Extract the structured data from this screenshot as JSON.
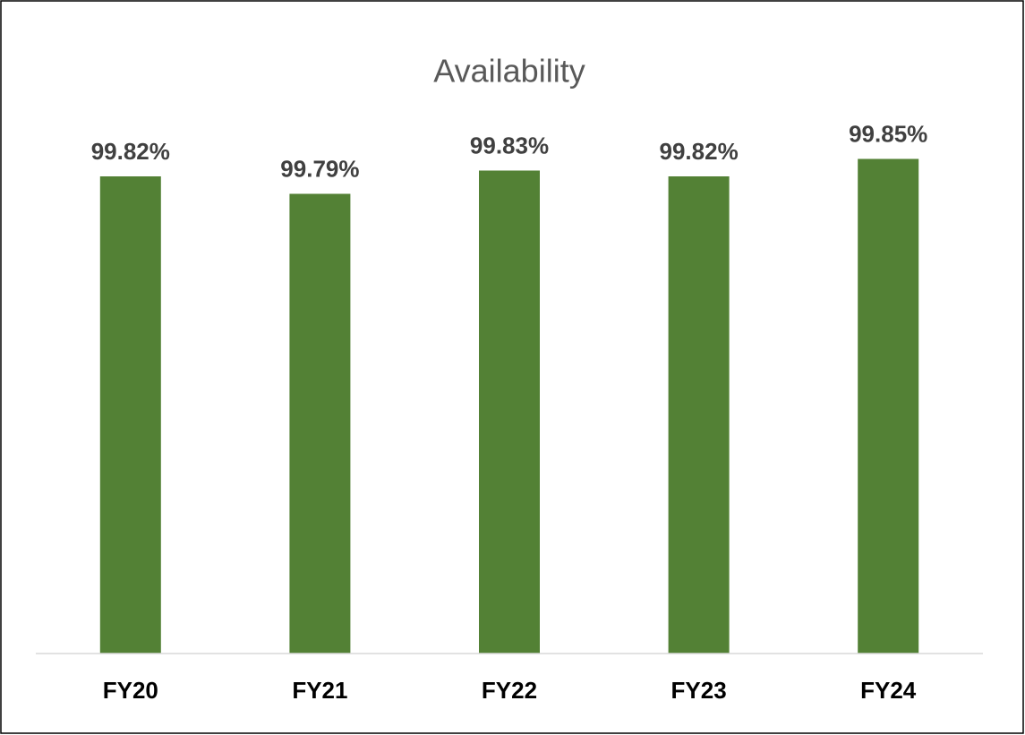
{
  "chart_data": {
    "type": "bar",
    "title": "Availability",
    "categories": [
      "FY20",
      "FY21",
      "FY22",
      "FY23",
      "FY24"
    ],
    "values": [
      99.82,
      99.79,
      99.83,
      99.82,
      99.85
    ],
    "value_labels": [
      "99.82%",
      "99.79%",
      "99.83%",
      "99.82%",
      "99.85%"
    ],
    "color": "#538135",
    "ylim": [
      99,
      99.9
    ]
  }
}
